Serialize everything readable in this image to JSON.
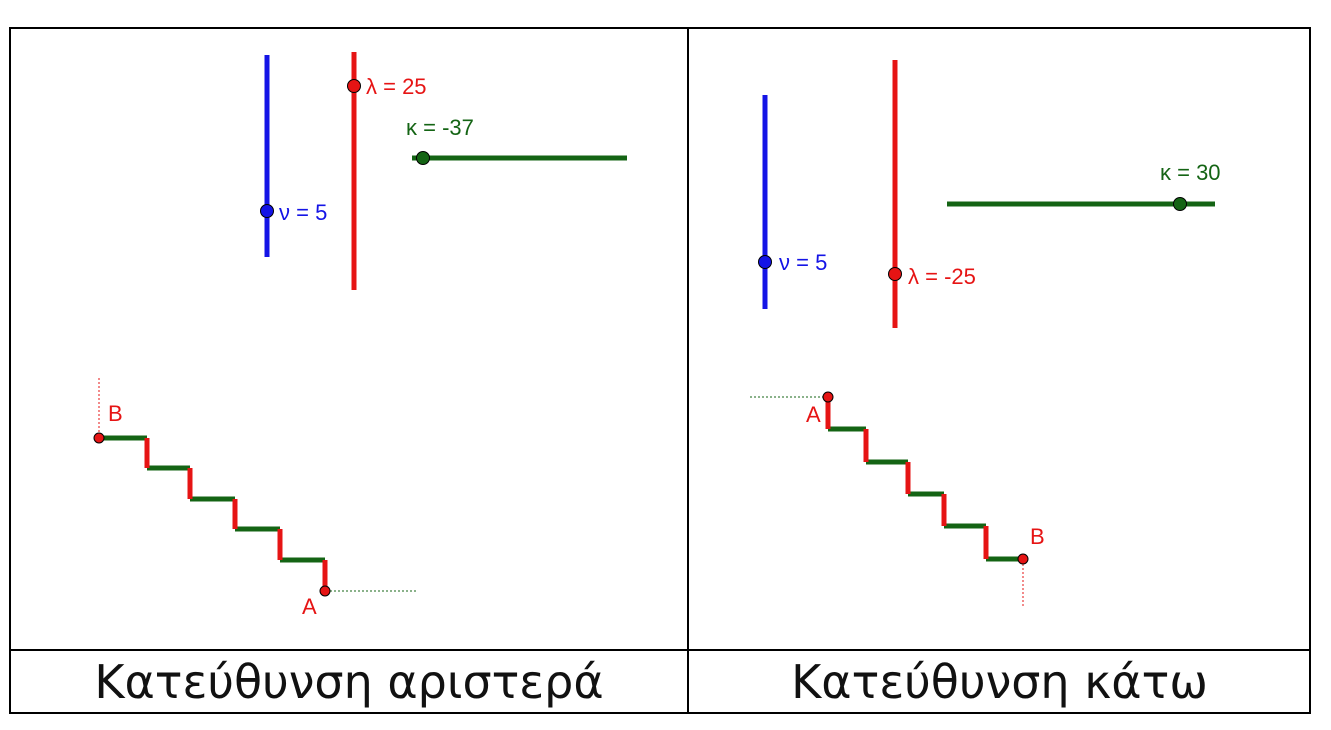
{
  "colors": {
    "nu": "#1414e6",
    "lambda": "#e61414",
    "kappa": "#146414",
    "border": "#000000"
  },
  "left_panel": {
    "caption": "Κατεύθυνση αριστερά",
    "slider_nu_label": "ν = 5",
    "slider_lambda_label": "λ = 25",
    "slider_kappa_label": "κ = -37",
    "point_a_label": "A",
    "point_b_label": "B"
  },
  "right_panel": {
    "caption": "Κατεύθυνση κάτω",
    "slider_nu_label": "ν = 5",
    "slider_lambda_label": "λ = -25",
    "slider_kappa_label": "κ = 30",
    "point_a_label": "A",
    "point_b_label": "B"
  }
}
